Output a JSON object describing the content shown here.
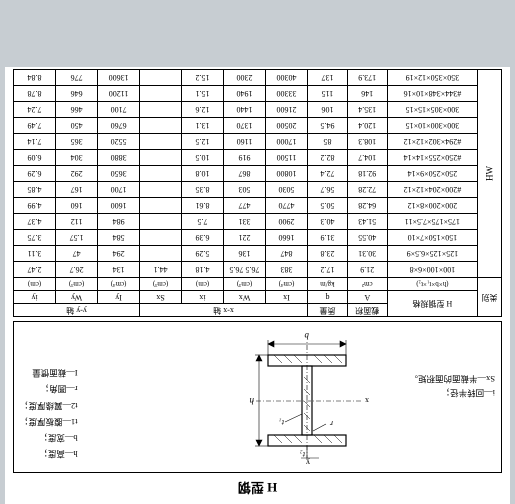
{
  "title": "H 型钢",
  "legend_right": [
    "h—高度；",
    "b—宽度；",
    "t1—腹板厚度；",
    "t2—翼缘厚度；",
    "r—圆角；",
    "I—截面惯量"
  ],
  "legend_left": [
    "i—回转半径；",
    "Sx—半截面的面积矩。"
  ],
  "dim_t2": "t₂",
  "dim_t1": "t₁",
  "dim_h": "h",
  "dim_r": "r",
  "dim_b": "b",
  "headers": {
    "cat": "类别",
    "spec": "H 型钢规格",
    "spec2": "(h×b×t₁×t₂)",
    "A": "截面积",
    "A_sym": "A",
    "A_unit": "cm²",
    "q": "质量",
    "q_sym": "q",
    "q_unit": "kg/m",
    "xx": "x-x 轴",
    "yy": "y-y 轴",
    "Ix_sym": "Ix",
    "Ix_unit": "(cm⁴)",
    "Wx_sym": "Wx",
    "Wx_unit": "(cm³)",
    "ix_sym": "ix",
    "ix_unit": "(cm)",
    "Sx_sym": "Sx",
    "Sx_unit": "(cm³)",
    "Iy_sym": "Iy",
    "Iy_unit": "(cm⁴)",
    "Wy_sym": "Wy",
    "Wy_unit": "(cm³)",
    "iy_sym": "iy",
    "iy_unit": "(cm)"
  },
  "cat_label": "HW",
  "rows": [
    [
      "100×100×6×8",
      "21.9",
      "17.2",
      "383",
      "76.5 76.5",
      "4.18",
      "44.1",
      "134",
      "26.7",
      "2.47"
    ],
    [
      "125×125×6.5×9",
      "30.31",
      "23.8",
      "847",
      "136",
      "5.29",
      "294",
      "47",
      "3.11"
    ],
    [
      "150×150×7×10",
      "40.55",
      "31.9",
      "1660",
      "221",
      "6.39",
      "584",
      "1.57",
      "3.75"
    ],
    [
      "175×175×7.5×11",
      "51.43",
      "40.3",
      "2900",
      "331",
      "7.5",
      "984",
      "112",
      "4.37"
    ],
    [
      "200×200×8×12",
      "64.28",
      "50.5",
      "4770",
      "477",
      "8.61",
      "1600",
      "160",
      "4.99"
    ],
    [
      "#200×204×12×12",
      "72.28",
      "56.7",
      "5030",
      "503",
      "8.35",
      "1700",
      "167",
      "4.85"
    ],
    [
      "250×250×9×14",
      "92.18",
      "72.4",
      "10800",
      "867",
      "10.8",
      "3650",
      "292",
      "6.29"
    ],
    [
      "#250×255×14×14",
      "104.7",
      "82.2",
      "11500",
      "919",
      "10.5",
      "3880",
      "304",
      "6.09"
    ],
    [
      "#294×302×12×12",
      "108.3",
      "85",
      "17000",
      "1160",
      "12.5",
      "5520",
      "365",
      "7.14"
    ],
    [
      "300×300×10×15",
      "120.4",
      "94.5",
      "20500",
      "1370",
      "13.1",
      "6760",
      "450",
      "7.49"
    ],
    [
      "300×305×15×15",
      "135.4",
      "106",
      "21600",
      "1440",
      "12.6",
      "7100",
      "466",
      "7.24"
    ],
    [
      "#344×348×10×16",
      "146",
      "115",
      "33300",
      "1940",
      "15.1",
      "11200",
      "646",
      "8.78"
    ],
    [
      "350×350×12×19",
      "173.9",
      "137",
      "40300",
      "2300",
      "15.2",
      "13600",
      "776",
      "8.84"
    ]
  ],
  "sxcol": {
    "4": "",
    "5": "",
    "6": "",
    "7": "",
    "8": "",
    "9": ""
  }
}
